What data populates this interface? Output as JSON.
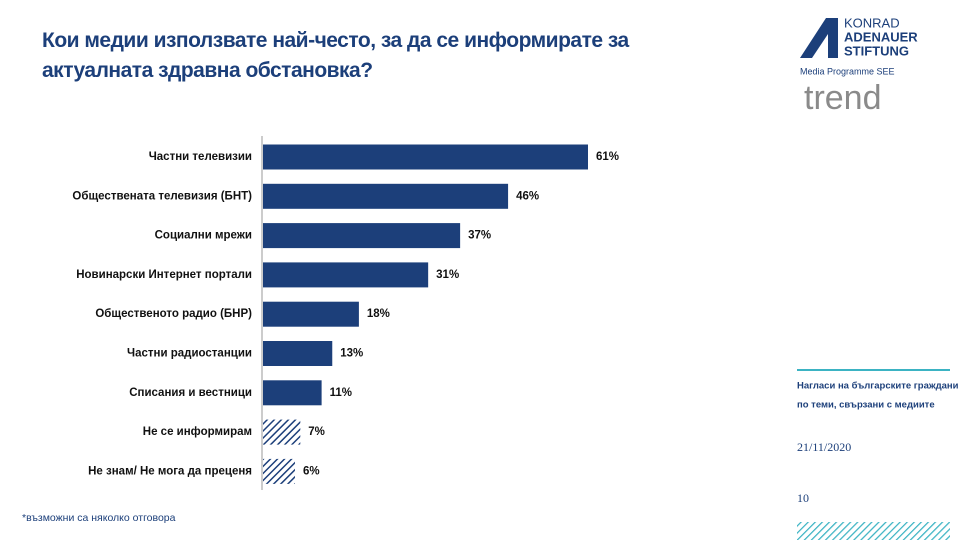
{
  "chart_data": {
    "type": "hbar",
    "title": "Кои медии използвате най-често, за да се информирате за актуалната здравна обстановка?",
    "categories": [
      "Частни телевизии",
      "Обществената телевизия (БНТ)",
      "Социални мрежи",
      "Новинарски Интернет портали",
      "Общественото радио (БНР)",
      "Частни радиостанции",
      "Списания и вестници",
      "Не се информирам",
      "Не знам/ Не мога да преценя"
    ],
    "values": [
      61,
      46,
      37,
      31,
      18,
      13,
      11,
      7,
      6
    ],
    "value_labels": [
      "61%",
      "46%",
      "37%",
      "31%",
      "18%",
      "13%",
      "11%",
      "7%",
      "6%"
    ],
    "hatched": [
      false,
      false,
      false,
      false,
      false,
      false,
      false,
      true,
      true
    ],
    "color": "#1c3f7a",
    "footnote": "*възможни са няколко отговора"
  },
  "logo": {
    "line1": "KONRAD",
    "line2": "ADENAUER",
    "line3": "STIFTUNG",
    "subtitle": "Media Programme SEE",
    "brand": "trend"
  },
  "sidebar": {
    "line1": "Нагласи на българските граждани",
    "line2": "по теми, свързани с медиите",
    "date": "21/11/2020",
    "page": "10"
  }
}
